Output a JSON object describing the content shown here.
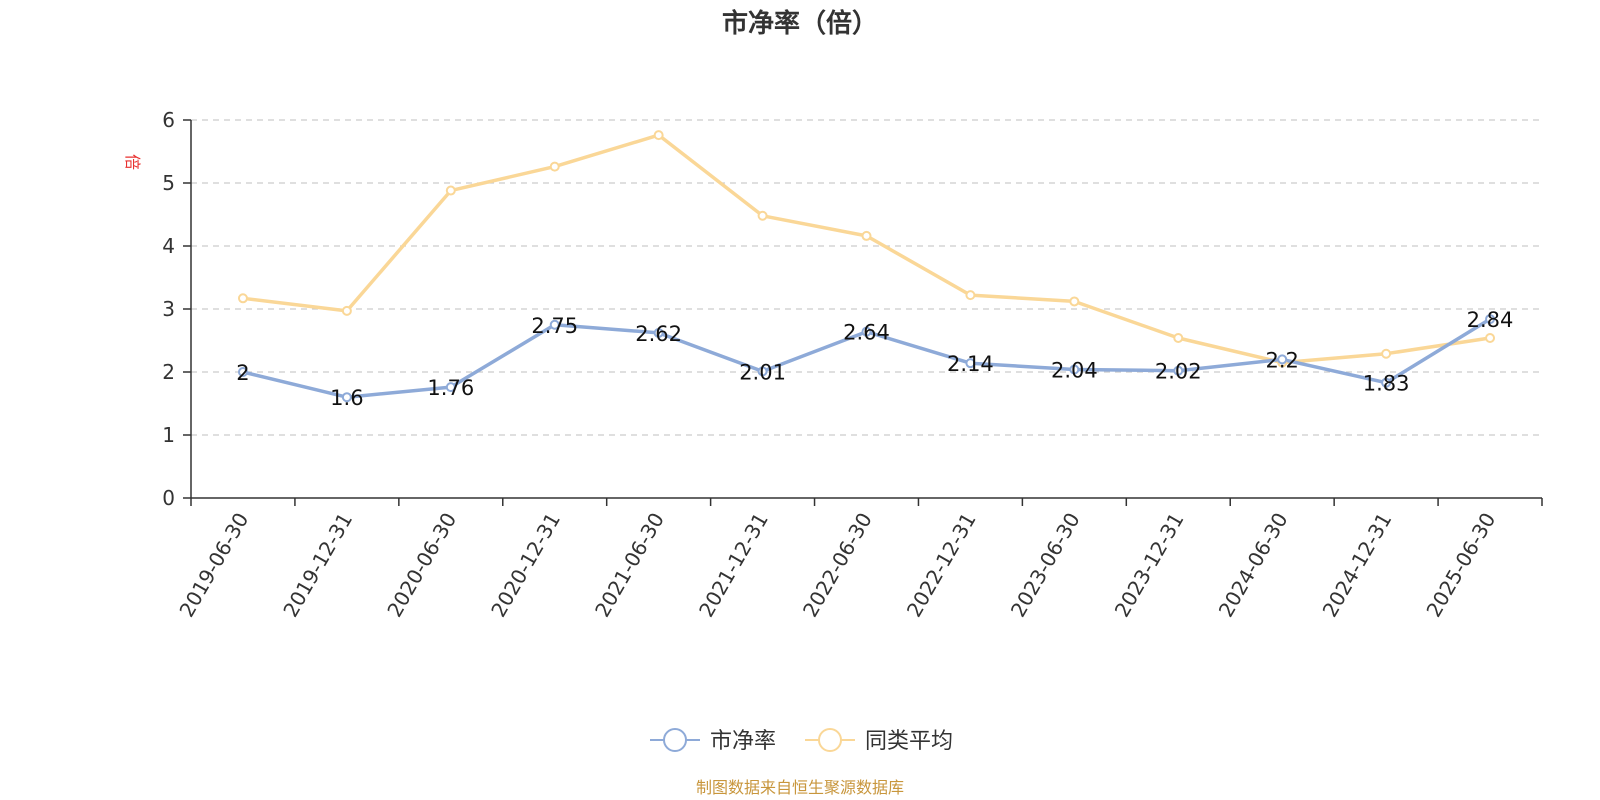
{
  "chart_data": {
    "type": "line",
    "title": "市净率（倍）",
    "ylabel": "倍",
    "xlabel": "",
    "ylim": [
      0,
      6
    ],
    "yticks": [
      0,
      1,
      2,
      3,
      4,
      5,
      6
    ],
    "grid": true,
    "legend_position": "bottom-center",
    "categories": [
      "2019-06-30",
      "2019-12-31",
      "2020-06-30",
      "2020-12-31",
      "2021-06-30",
      "2021-12-31",
      "2022-06-30",
      "2022-12-31",
      "2023-06-30",
      "2023-12-31",
      "2024-06-30",
      "2024-12-31",
      "2025-06-30"
    ],
    "series": [
      {
        "name": "市净率",
        "color": "#8eaad8",
        "values": [
          2,
          1.6,
          1.76,
          2.75,
          2.62,
          2.01,
          2.64,
          2.14,
          2.04,
          2.02,
          2.2,
          1.83,
          2.84
        ],
        "labels": [
          "2",
          "1.6",
          "1.76",
          "2.75",
          "2.62",
          "2.01",
          "2.64",
          "2.14",
          "2.04",
          "2.02",
          "2.2",
          "1.83",
          "2.84"
        ]
      },
      {
        "name": "同类平均",
        "color": "#fad797",
        "values": [
          3.17,
          2.97,
          4.88,
          5.26,
          5.76,
          4.48,
          4.16,
          3.22,
          3.12,
          2.54,
          2.15,
          2.29,
          2.54
        ]
      }
    ],
    "source": "制图数据来自恒生聚源数据库"
  }
}
